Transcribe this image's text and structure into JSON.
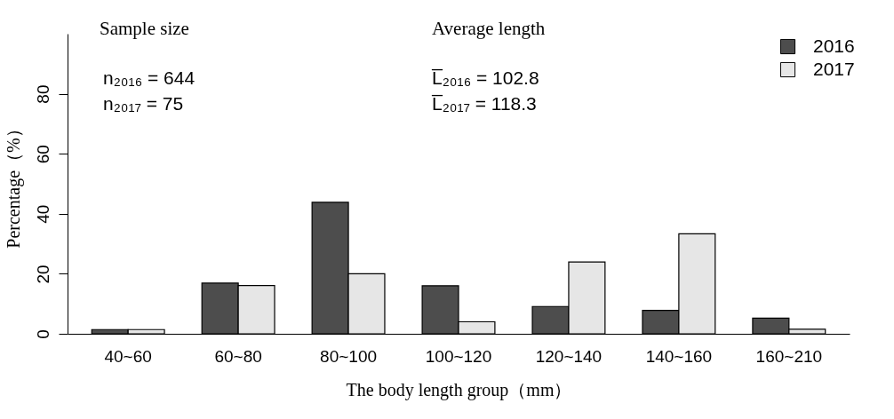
{
  "chart_data": {
    "type": "bar",
    "xlabel": "The body length group（mm）",
    "ylabel": "Percentage（%）",
    "categories": [
      "40~60",
      "60~80",
      "80~100",
      "100~120",
      "120~140",
      "140~160",
      "160~210"
    ],
    "series": [
      {
        "name": "2016",
        "color": "#4d4d4d",
        "values": [
          1.4,
          16.9,
          43.8,
          16.0,
          9.1,
          7.8,
          5.2
        ]
      },
      {
        "name": "2017",
        "color": "#e6e6e6",
        "values": [
          1.4,
          16.1,
          20.0,
          4.0,
          23.9,
          33.3,
          1.5
        ]
      }
    ],
    "ylim": [
      0,
      100
    ],
    "yticks": [
      0,
      20,
      40,
      60,
      80
    ],
    "grid": false,
    "legend": "top right",
    "annotations": [
      "Sample size",
      "n₂₀₁₆ = 644",
      "n₂₀₁₇ = 75",
      "Average length",
      "L̅₂₀₁₆ = 102.8",
      "L̅₂₀₁₇ = 118.3"
    ]
  }
}
